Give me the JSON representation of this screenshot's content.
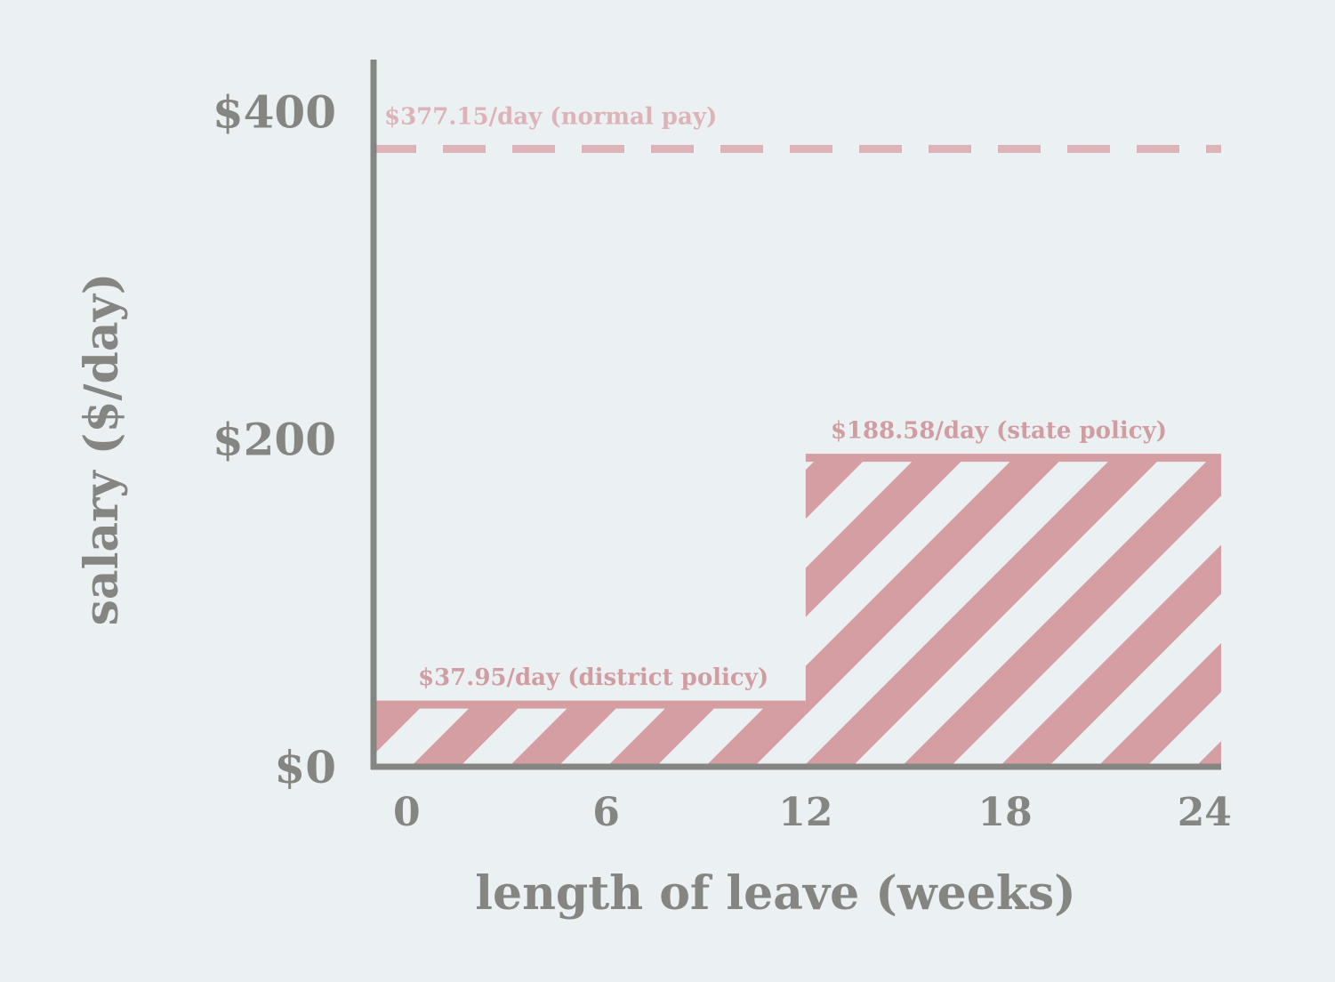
{
  "colors": {
    "background": "#ebf1f3",
    "axis": "#858681",
    "bar": "#d49ea3",
    "reference": "#ddb3b7",
    "annotation": "#d09da1"
  },
  "chart_data": {
    "type": "bar",
    "title": "",
    "xlabel": "length of leave (weeks)",
    "ylabel": "salary ($/day)",
    "xlim": [
      -1,
      24.5
    ],
    "ylim": [
      0,
      430
    ],
    "x_ticks": [
      0,
      6,
      12,
      18,
      24
    ],
    "x_tick_labels": [
      "0",
      "6",
      "12",
      "18",
      "24"
    ],
    "y_ticks": [
      0,
      200,
      400
    ],
    "y_tick_labels": [
      "$0",
      "$200",
      "$400"
    ],
    "grid": false,
    "segments": [
      {
        "x_start": -1,
        "x_end": 12,
        "value": 37.95,
        "label": "$37.95/day (district policy)",
        "fill": "diagonal-hatch"
      },
      {
        "x_start": 12,
        "x_end": 24.5,
        "value": 188.58,
        "label": "$188.58/day (state policy)",
        "fill": "diagonal-hatch"
      }
    ],
    "reference_line": {
      "value": 377.15,
      "label": "$377.15/day (normal pay)",
      "style": "dashed"
    }
  }
}
